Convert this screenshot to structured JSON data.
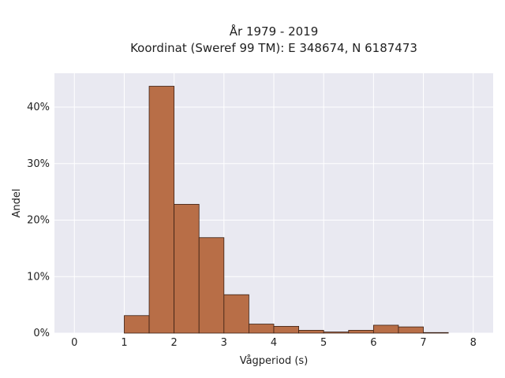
{
  "chart_data": {
    "type": "bar",
    "title_line1": "År 1979 - 2019",
    "title_line2": "Koordinat (Sweref 99 TM): E 348674, N 6187473",
    "xlabel": "Vågperiod (s)",
    "ylabel": "Andel",
    "xlim": [
      -0.4,
      8.4
    ],
    "ylim": [
      0,
      46
    ],
    "x_ticks": [
      0,
      1,
      2,
      3,
      4,
      5,
      6,
      7,
      8
    ],
    "y_ticks": [
      0,
      10,
      20,
      30,
      40
    ],
    "y_tick_labels": [
      "0%",
      "10%",
      "20%",
      "30%",
      "40%"
    ],
    "grid": true,
    "bar_color": "#b86e47",
    "bar_edge_color": "#3a2014",
    "background_color": "#e9e9f1",
    "bins": [
      {
        "start": 1.0,
        "end": 1.5,
        "value": 3.1
      },
      {
        "start": 1.5,
        "end": 2.0,
        "value": 43.7
      },
      {
        "start": 2.0,
        "end": 2.5,
        "value": 22.8
      },
      {
        "start": 2.5,
        "end": 3.0,
        "value": 16.9
      },
      {
        "start": 3.0,
        "end": 3.5,
        "value": 6.8
      },
      {
        "start": 3.5,
        "end": 4.0,
        "value": 1.6
      },
      {
        "start": 4.0,
        "end": 4.5,
        "value": 1.2
      },
      {
        "start": 4.5,
        "end": 5.0,
        "value": 0.5
      },
      {
        "start": 5.0,
        "end": 5.5,
        "value": 0.2
      },
      {
        "start": 5.5,
        "end": 6.0,
        "value": 0.5
      },
      {
        "start": 6.0,
        "end": 6.5,
        "value": 1.4
      },
      {
        "start": 6.5,
        "end": 7.0,
        "value": 1.1
      },
      {
        "start": 7.0,
        "end": 7.5,
        "value": 0.1
      }
    ]
  }
}
